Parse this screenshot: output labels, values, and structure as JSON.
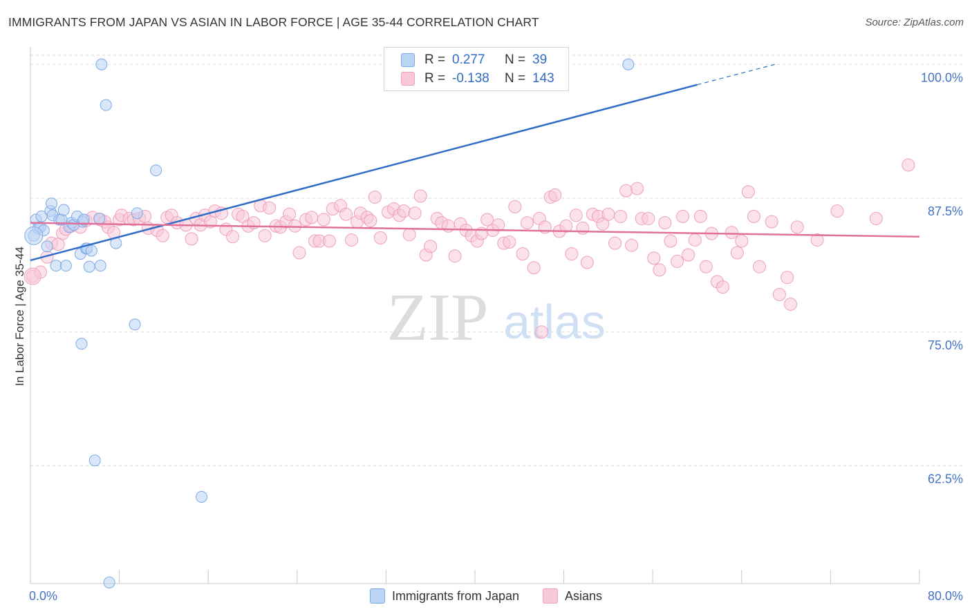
{
  "title": "IMMIGRANTS FROM JAPAN VS ASIAN IN LABOR FORCE | AGE 35-44 CORRELATION CHART",
  "source": "Source: ZipAtlas.com",
  "watermark": {
    "zip": "ZIP",
    "atlas": "atlas"
  },
  "legend": {
    "rows": [
      {
        "r_label": "R =",
        "r_value": "0.277",
        "n_label": "N =",
        "n_value": "39"
      },
      {
        "r_label": "R =",
        "r_value": "-0.138",
        "n_label": "N =",
        "n_value": "143"
      }
    ]
  },
  "chart_data": {
    "type": "scatter",
    "title": "IMMIGRANTS FROM JAPAN VS ASIAN IN LABOR FORCE | AGE 35-44 CORRELATION CHART",
    "xlabel": "",
    "ylabel": "In Labor Force | Age 35-44",
    "xlim": [
      0,
      80
    ],
    "ylim": [
      51.5,
      101.5
    ],
    "x_tick_labels": [
      "0.0%",
      "80.0%"
    ],
    "y_ticks": [
      62.5,
      75.0,
      87.5,
      100.0
    ],
    "y_tick_labels": [
      "62.5%",
      "75.0%",
      "87.5%",
      "100.0%"
    ],
    "grid": "horizontal dashed",
    "legend_position": "top-center",
    "series": [
      {
        "name": "Immigrants from Japan",
        "color": "#7aaae6",
        "fill": "#bcd4f4",
        "trend_color": "#2f6cc6",
        "trend": {
          "x0": 0,
          "y0": 81.7,
          "x1": 60,
          "y1": 98.1,
          "dash_to_x": 67,
          "dash_to_y": 100.0
        },
        "points": [
          [
            0.3,
            84.0
          ],
          [
            0.5,
            85.5
          ],
          [
            0.7,
            84.7
          ],
          [
            0.9,
            84.8
          ],
          [
            1.0,
            85.8
          ],
          [
            1.2,
            84.5
          ],
          [
            1.5,
            83.0
          ],
          [
            1.8,
            86.3
          ],
          [
            1.9,
            87.0
          ],
          [
            2.0,
            85.9
          ],
          [
            2.3,
            81.2
          ],
          [
            2.6,
            85.5
          ],
          [
            2.8,
            85.5
          ],
          [
            3.0,
            86.4
          ],
          [
            3.2,
            81.2
          ],
          [
            3.5,
            84.8
          ],
          [
            3.7,
            85.2
          ],
          [
            3.9,
            85.0
          ],
          [
            4.2,
            85.8
          ],
          [
            4.5,
            82.3
          ],
          [
            4.7,
            85.3
          ],
          [
            4.8,
            85.5
          ],
          [
            5.0,
            82.8
          ],
          [
            5.1,
            82.8
          ],
          [
            5.3,
            81.1
          ],
          [
            5.5,
            82.6
          ],
          [
            6.2,
            85.6
          ],
          [
            6.3,
            81.2
          ],
          [
            6.4,
            100.0
          ],
          [
            6.8,
            96.2
          ],
          [
            7.7,
            83.3
          ],
          [
            9.6,
            86.1
          ],
          [
            11.3,
            90.1
          ],
          [
            9.4,
            75.7
          ],
          [
            4.6,
            73.9
          ],
          [
            5.8,
            63.0
          ],
          [
            15.4,
            59.6
          ],
          [
            7.1,
            51.6
          ],
          [
            53.8,
            100.0
          ]
        ]
      },
      {
        "name": "Asians",
        "color": "#ef9fbb",
        "fill": "#f7c9d8",
        "trend_color": "#e0709a",
        "trend": {
          "x0": 0,
          "y0": 85.2,
          "x1": 80,
          "y1": 83.9
        },
        "points": [
          [
            0.2,
            80.2
          ],
          [
            0.9,
            80.6
          ],
          [
            1.5,
            82.0
          ],
          [
            1.9,
            83.3
          ],
          [
            2.5,
            83.2
          ],
          [
            2.9,
            84.2
          ],
          [
            3.2,
            84.6
          ],
          [
            3.7,
            84.9
          ],
          [
            4.5,
            84.8
          ],
          [
            5.0,
            85.4
          ],
          [
            5.6,
            85.7
          ],
          [
            6.3,
            85.5
          ],
          [
            6.7,
            85.3
          ],
          [
            7.0,
            84.8
          ],
          [
            7.5,
            84.3
          ],
          [
            8.0,
            85.5
          ],
          [
            8.2,
            85.9
          ],
          [
            8.9,
            85.6
          ],
          [
            9.3,
            85.5
          ],
          [
            9.8,
            85.6
          ],
          [
            10.3,
            85.8
          ],
          [
            10.6,
            84.7
          ],
          [
            11.4,
            84.5
          ],
          [
            11.9,
            84.0
          ],
          [
            12.3,
            85.7
          ],
          [
            12.7,
            85.9
          ],
          [
            13.2,
            85.2
          ],
          [
            14.0,
            85.0
          ],
          [
            14.5,
            83.7
          ],
          [
            14.9,
            85.6
          ],
          [
            15.3,
            85.0
          ],
          [
            15.7,
            85.9
          ],
          [
            16.2,
            85.3
          ],
          [
            16.6,
            86.3
          ],
          [
            17.2,
            86.1
          ],
          [
            17.6,
            84.6
          ],
          [
            18.2,
            83.9
          ],
          [
            18.7,
            86.0
          ],
          [
            19.1,
            85.8
          ],
          [
            19.6,
            84.9
          ],
          [
            20.1,
            85.2
          ],
          [
            20.7,
            86.8
          ],
          [
            21.1,
            84.0
          ],
          [
            21.5,
            86.6
          ],
          [
            22.1,
            84.9
          ],
          [
            22.5,
            84.8
          ],
          [
            23.0,
            85.3
          ],
          [
            23.3,
            86.0
          ],
          [
            23.8,
            84.9
          ],
          [
            24.2,
            82.4
          ],
          [
            24.8,
            85.5
          ],
          [
            25.3,
            85.7
          ],
          [
            25.6,
            83.5
          ],
          [
            26.0,
            83.5
          ],
          [
            26.4,
            85.5
          ],
          [
            26.9,
            83.5
          ],
          [
            27.2,
            86.5
          ],
          [
            27.9,
            86.8
          ],
          [
            28.4,
            86.0
          ],
          [
            28.9,
            83.6
          ],
          [
            29.4,
            85.3
          ],
          [
            29.7,
            86.1
          ],
          [
            30.3,
            85.7
          ],
          [
            30.6,
            85.4
          ],
          [
            31.0,
            87.6
          ],
          [
            31.5,
            83.8
          ],
          [
            32.2,
            86.2
          ],
          [
            32.7,
            86.5
          ],
          [
            33.2,
            85.9
          ],
          [
            33.6,
            86.3
          ],
          [
            34.1,
            84.1
          ],
          [
            34.6,
            86.1
          ],
          [
            35.1,
            87.7
          ],
          [
            35.6,
            82.2
          ],
          [
            36.0,
            83.0
          ],
          [
            36.6,
            85.6
          ],
          [
            37.0,
            85.2
          ],
          [
            37.6,
            84.9
          ],
          [
            38.2,
            82.1
          ],
          [
            38.7,
            85.1
          ],
          [
            39.2,
            84.5
          ],
          [
            39.7,
            84.0
          ],
          [
            40.2,
            83.5
          ],
          [
            40.6,
            84.2
          ],
          [
            41.1,
            85.5
          ],
          [
            41.6,
            84.5
          ],
          [
            42.1,
            85.0
          ],
          [
            42.6,
            83.3
          ],
          [
            43.1,
            83.4
          ],
          [
            43.6,
            86.7
          ],
          [
            44.3,
            82.3
          ],
          [
            44.7,
            85.2
          ],
          [
            45.3,
            81.0
          ],
          [
            45.8,
            85.6
          ],
          [
            46.3,
            84.8
          ],
          [
            46.8,
            87.6
          ],
          [
            47.2,
            87.8
          ],
          [
            47.6,
            84.4
          ],
          [
            48.2,
            84.9
          ],
          [
            48.7,
            82.3
          ],
          [
            49.1,
            85.9
          ],
          [
            49.7,
            84.7
          ],
          [
            50.1,
            81.5
          ],
          [
            50.6,
            86.0
          ],
          [
            51.1,
            85.8
          ],
          [
            51.5,
            85.1
          ],
          [
            52.0,
            86.0
          ],
          [
            52.6,
            83.3
          ],
          [
            53.1,
            85.8
          ],
          [
            53.6,
            88.2
          ],
          [
            54.1,
            83.1
          ],
          [
            54.6,
            88.4
          ],
          [
            55.0,
            85.6
          ],
          [
            55.6,
            85.6
          ],
          [
            56.1,
            81.9
          ],
          [
            56.6,
            80.8
          ],
          [
            57.1,
            85.2
          ],
          [
            57.6,
            83.5
          ],
          [
            58.2,
            81.6
          ],
          [
            58.7,
            85.8
          ],
          [
            59.2,
            82.2
          ],
          [
            59.8,
            83.6
          ],
          [
            60.3,
            85.8
          ],
          [
            60.8,
            81.1
          ],
          [
            61.3,
            84.2
          ],
          [
            61.8,
            79.7
          ],
          [
            62.3,
            79.2
          ],
          [
            63.1,
            84.3
          ],
          [
            63.6,
            82.4
          ],
          [
            64.0,
            83.5
          ],
          [
            64.6,
            88.1
          ],
          [
            65.1,
            85.8
          ],
          [
            65.6,
            81.1
          ],
          [
            66.7,
            85.3
          ],
          [
            67.4,
            78.5
          ],
          [
            68.1,
            80.1
          ],
          [
            68.4,
            77.6
          ],
          [
            69.0,
            84.8
          ],
          [
            70.8,
            83.6
          ],
          [
            72.6,
            86.3
          ],
          [
            76.1,
            85.6
          ],
          [
            79.0,
            90.6
          ],
          [
            46.0,
            75.0
          ]
        ]
      }
    ]
  }
}
